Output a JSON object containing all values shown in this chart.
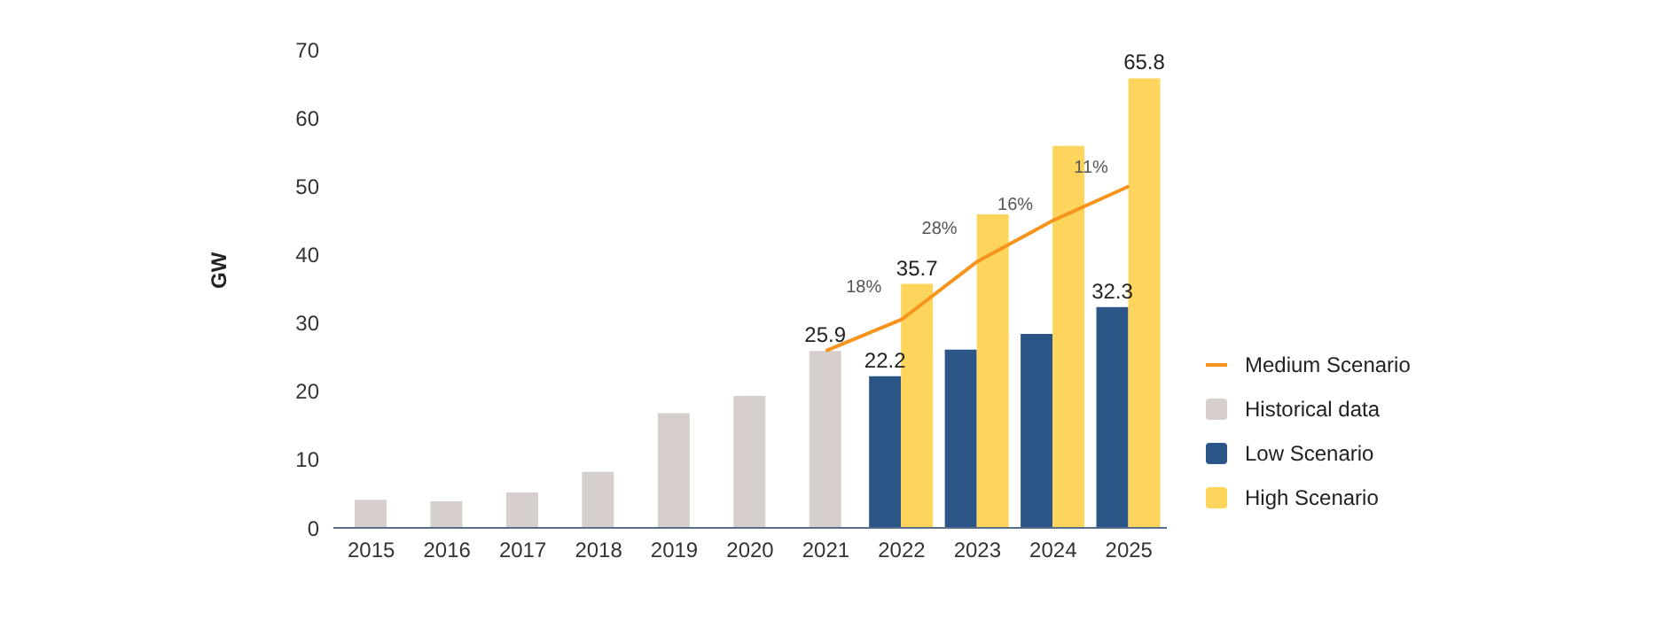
{
  "chart_data": {
    "type": "bar",
    "categories": [
      "2015",
      "2016",
      "2017",
      "2018",
      "2019",
      "2020",
      "2021",
      "2022",
      "2023",
      "2024",
      "2025"
    ],
    "ylabel": "GW",
    "ylim": [
      0,
      70
    ],
    "yticks": [
      0,
      10,
      20,
      30,
      40,
      50,
      60,
      70
    ],
    "grid": false,
    "legend": "right",
    "series": [
      {
        "name": "Medium Scenario",
        "type": "line",
        "color": "#f7941d",
        "values": [
          null,
          null,
          null,
          null,
          null,
          null,
          25.9,
          30.5,
          39,
          45,
          50
        ],
        "marker": "none"
      },
      {
        "name": "Historical data",
        "color": "#d6cfcb",
        "values": [
          4.1,
          3.9,
          5.2,
          8.2,
          16.8,
          19.3,
          25.9,
          null,
          null,
          null,
          null
        ],
        "value_labels": [
          null,
          null,
          null,
          null,
          null,
          null,
          "25.9",
          null,
          null,
          null,
          null
        ]
      },
      {
        "name": "Low Scenario",
        "color": "#2b5587",
        "values": [
          null,
          null,
          null,
          null,
          null,
          null,
          null,
          22.2,
          26.1,
          28.4,
          32.3
        ],
        "value_labels": [
          null,
          null,
          null,
          null,
          null,
          null,
          null,
          "22.2",
          null,
          null,
          "32.3"
        ]
      },
      {
        "name": "High Scenario",
        "color": "#fdd55c",
        "values": [
          null,
          null,
          null,
          null,
          null,
          null,
          null,
          35.7,
          45.9,
          55.9,
          65.8
        ],
        "value_labels": [
          null,
          null,
          null,
          null,
          null,
          null,
          null,
          "35.7",
          null,
          null,
          "65.8"
        ]
      }
    ],
    "annotations": [
      {
        "text": "18%",
        "x": "2022",
        "y": 34.5
      },
      {
        "text": "28%",
        "x": "2023",
        "y": 43
      },
      {
        "text": "16%",
        "x": "2024",
        "y": 46.5
      },
      {
        "text": "11%",
        "x": "2025",
        "y": 52
      }
    ]
  }
}
